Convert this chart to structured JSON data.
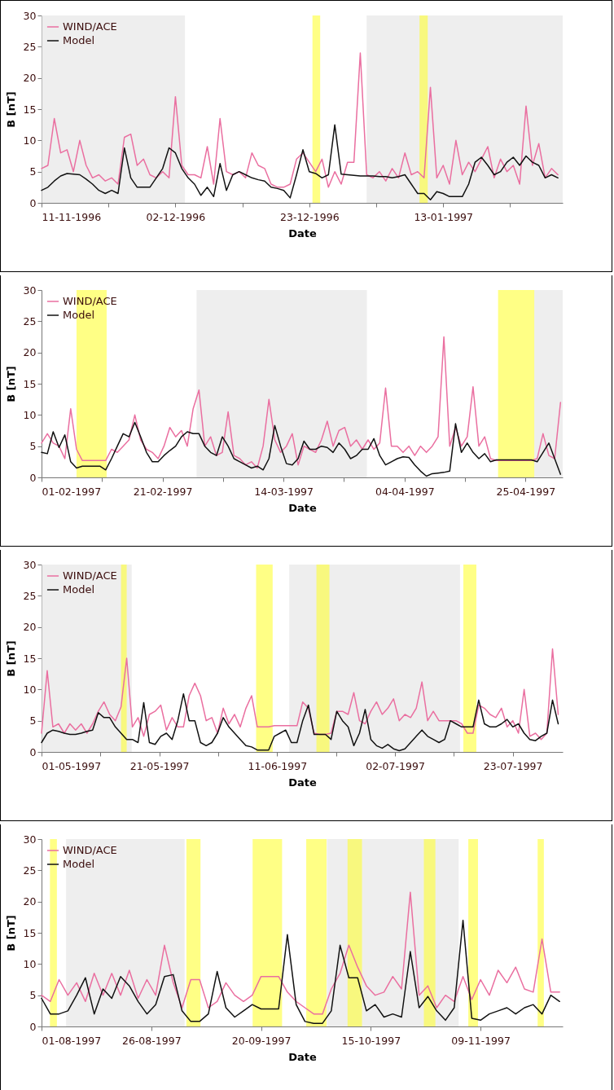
{
  "chart_data": [
    {
      "type": "line",
      "xlabel": "Date",
      "ylabel": "B [nT]",
      "legend": "top left",
      "grid": false,
      "ylim": [
        0,
        30
      ],
      "yticks": [
        0,
        5,
        10,
        15,
        20,
        25,
        30
      ],
      "xlim": [
        "1996-11-11",
        "1997-01-31T18:00"
      ],
      "xticks": [
        {
          "value": "1996-11-11",
          "label": "11-11-1996"
        },
        {
          "value": "1996-11-21T12:00",
          "label": null
        },
        {
          "value": "1996-12-02",
          "label": "02-12-1996"
        },
        {
          "value": "1996-12-12T12:00",
          "label": null
        },
        {
          "value": "1996-12-23",
          "label": "23-12-1996"
        },
        {
          "value": "1997-01-02T12:00",
          "label": null
        },
        {
          "value": "1997-01-13",
          "label": "13-01-1997"
        },
        {
          "value": "1997-01-23T12:00",
          "label": null
        }
      ],
      "bands": [
        {
          "axis": "x",
          "from": "1996-11-11",
          "to": "1996-12-03T12:00",
          "color": "#e3e3e3"
        },
        {
          "axis": "x",
          "from": "1997-01-01",
          "to": "1997-01-31T18:00",
          "color": "#e3e3e3"
        },
        {
          "axis": "x",
          "from": "1996-12-23T12:00",
          "to": "1996-12-24T17:00",
          "color": "#ffff33"
        },
        {
          "axis": "x",
          "from": "1997-01-09T07:00",
          "to": "1997-01-10T14:00",
          "color": "#ffff33"
        }
      ],
      "x": [
        "1996-11-11",
        "1996-11-12",
        "1996-11-13",
        "1996-11-14",
        "1996-11-15",
        "1996-11-16",
        "1996-11-17",
        "1996-11-18",
        "1996-11-19",
        "1996-11-20",
        "1996-11-21",
        "1996-11-22",
        "1996-11-23",
        "1996-11-24",
        "1996-11-25",
        "1996-11-26",
        "1996-11-27",
        "1996-11-28",
        "1996-11-29",
        "1996-11-30",
        "1996-12-01",
        "1996-12-02",
        "1996-12-03",
        "1996-12-04",
        "1996-12-05",
        "1996-12-06",
        "1996-12-07",
        "1996-12-08",
        "1996-12-09",
        "1996-12-10",
        "1996-12-11",
        "1996-12-12",
        "1996-12-13",
        "1996-12-14",
        "1996-12-15",
        "1996-12-16",
        "1996-12-17",
        "1996-12-18",
        "1996-12-19",
        "1996-12-20",
        "1996-12-21",
        "1996-12-22",
        "1996-12-23",
        "1996-12-24",
        "1996-12-25",
        "1996-12-26",
        "1996-12-27",
        "1996-12-28",
        "1996-12-29",
        "1996-12-30",
        "1996-12-31",
        "1997-01-01",
        "1997-01-02",
        "1997-01-03",
        "1997-01-04",
        "1997-01-05",
        "1997-01-06",
        "1997-01-07",
        "1997-01-08",
        "1997-01-09",
        "1997-01-10",
        "1997-01-11",
        "1997-01-12",
        "1997-01-13",
        "1997-01-14",
        "1997-01-15",
        "1997-01-16",
        "1997-01-17",
        "1997-01-18",
        "1997-01-19",
        "1997-01-20",
        "1997-01-21",
        "1997-01-22",
        "1997-01-23",
        "1997-01-24",
        "1997-01-25",
        "1997-01-26",
        "1997-01-27",
        "1997-01-28",
        "1997-01-29",
        "1997-01-30",
        "1997-01-31"
      ],
      "series": [
        {
          "name": "WIND/ACE",
          "color": "#ea6fa0",
          "values": [
            5.5,
            6,
            13.5,
            8,
            8.5,
            5,
            10,
            6,
            4,
            4.5,
            3.5,
            4,
            3,
            10.5,
            11,
            6,
            7,
            4.5,
            4,
            5,
            4,
            17,
            6,
            4.5,
            4.5,
            4,
            9,
            3,
            13.5,
            5,
            4.5,
            5,
            4,
            8,
            6,
            5.5,
            3,
            2.5,
            2.5,
            3,
            7,
            8,
            6.5,
            5,
            7,
            2.5,
            5,
            3,
            6.5,
            6.5,
            24,
            4.5,
            4,
            5,
            3.5,
            5.5,
            4,
            8,
            4.5,
            5,
            4,
            18.5,
            4,
            6,
            3,
            10,
            4.5,
            6.5,
            5,
            7,
            9,
            4,
            7,
            5,
            6,
            3,
            15.5,
            6,
            9.5,
            4,
            5.5,
            4.5
          ]
        },
        {
          "name": "Model",
          "color": "#111111",
          "values": [
            2,
            2.5,
            3.5,
            4.3,
            4.7,
            4.6,
            4.5,
            3.8,
            3,
            2,
            1.5,
            2,
            1.5,
            8.8,
            4,
            2.5,
            2.5,
            2.5,
            4,
            5.5,
            8.8,
            8,
            5.5,
            4,
            3,
            1.2,
            2.5,
            1,
            6.3,
            2,
            4.5,
            5,
            4.5,
            4,
            3.7,
            3.5,
            2.5,
            2.3,
            2,
            0.8,
            4.5,
            8.5,
            5,
            4.7,
            4,
            4.5,
            12.5,
            4.6,
            4.5,
            4.4,
            4.3,
            4.3,
            4.3,
            4.2,
            4.2,
            4,
            4.2,
            4.5,
            3,
            1.5,
            1.5,
            0.5,
            1.8,
            1.5,
            1,
            1,
            1,
            3,
            6.5,
            7.3,
            6,
            4.5,
            5,
            6.5,
            7.3,
            6,
            7.5,
            6.5,
            6,
            4,
            4.5,
            4
          ]
        }
      ]
    },
    {
      "type": "line",
      "xlabel": "Date",
      "ylabel": "B [nT]",
      "legend": "top left",
      "grid": false,
      "ylim": [
        0,
        30
      ],
      "yticks": [
        0,
        5,
        10,
        15,
        20,
        25,
        30
      ],
      "xlim": [
        "1997-02-01",
        "1997-05-01T09:00"
      ],
      "xticks": [
        {
          "value": "1997-02-01",
          "label": "01-02-1997"
        },
        {
          "value": "1997-02-11T09:00",
          "label": null
        },
        {
          "value": "1997-02-21T18:00",
          "label": "21-02-1997"
        },
        {
          "value": "1997-03-04T03:00",
          "label": null
        },
        {
          "value": "1997-03-14T12:00",
          "label": "14-03-1997"
        },
        {
          "value": "1997-03-24T21:00",
          "label": null
        },
        {
          "value": "1997-04-04T06:00",
          "label": "04-04-1997"
        },
        {
          "value": "1997-04-14T15:00",
          "label": null
        },
        {
          "value": "1997-04-25",
          "label": "25-04-1997"
        }
      ],
      "bands": [
        {
          "axis": "x",
          "from": "1997-02-27T14:00",
          "to": "1997-03-28T19:00",
          "color": "#e3e3e3"
        },
        {
          "axis": "x",
          "from": "1997-04-26T12:00",
          "to": "1997-05-01T09:00",
          "color": "#e3e3e3"
        },
        {
          "axis": "x",
          "from": "1997-02-07",
          "to": "1997-02-12T04:00",
          "color": "#ffff33"
        },
        {
          "axis": "x",
          "from": "1997-04-20T07:00",
          "to": "1997-04-26T12:00",
          "color": "#ffff33"
        }
      ],
      "x": [
        "1997-02-01",
        "1997-02-02",
        "1997-02-03",
        "1997-02-04",
        "1997-02-05",
        "1997-02-06",
        "1997-02-07",
        "1997-02-08",
        "1997-02-09",
        "1997-02-10",
        "1997-02-11",
        "1997-02-12",
        "1997-02-13",
        "1997-02-14",
        "1997-02-15",
        "1997-02-16",
        "1997-02-17",
        "1997-02-18",
        "1997-02-19",
        "1997-02-20",
        "1997-02-21",
        "1997-02-22",
        "1997-02-23",
        "1997-02-24",
        "1997-02-25",
        "1997-02-26",
        "1997-02-27",
        "1997-02-28",
        "1997-03-01",
        "1997-03-02",
        "1997-03-03",
        "1997-03-04",
        "1997-03-05",
        "1997-03-06",
        "1997-03-07",
        "1997-03-08",
        "1997-03-09",
        "1997-03-10",
        "1997-03-11",
        "1997-03-12",
        "1997-03-13",
        "1997-03-14",
        "1997-03-15",
        "1997-03-16",
        "1997-03-17",
        "1997-03-18",
        "1997-03-19",
        "1997-03-20",
        "1997-03-21",
        "1997-03-22",
        "1997-03-23",
        "1997-03-24",
        "1997-03-25",
        "1997-03-26",
        "1997-03-27",
        "1997-03-28",
        "1997-03-29",
        "1997-03-30",
        "1997-03-31",
        "1997-04-01",
        "1997-04-02",
        "1997-04-03",
        "1997-04-04",
        "1997-04-05",
        "1997-04-06",
        "1997-04-07",
        "1997-04-08",
        "1997-04-09",
        "1997-04-10",
        "1997-04-11",
        "1997-04-12",
        "1997-04-13",
        "1997-04-14",
        "1997-04-15",
        "1997-04-16",
        "1997-04-17",
        "1997-04-18",
        "1997-04-19",
        "1997-04-20",
        "1997-04-21",
        "1997-04-22",
        "1997-04-23",
        "1997-04-24",
        "1997-04-25",
        "1997-04-26",
        "1997-04-27",
        "1997-04-28",
        "1997-04-29",
        "1997-04-30",
        "1997-05-01"
      ],
      "series": [
        {
          "name": "WIND/ACE",
          "color": "#ea6fa0",
          "values": [
            5.5,
            7,
            5.5,
            5,
            3,
            11,
            4.5,
            2.7,
            2.7,
            2.7,
            2.7,
            2.7,
            4.5,
            4,
            5,
            6,
            10,
            6,
            4.5,
            4,
            3,
            5,
            8,
            6.5,
            7.5,
            5,
            11,
            14,
            5,
            6.5,
            3.5,
            4,
            10.5,
            3.5,
            3,
            2,
            2.5,
            1.5,
            5,
            12.5,
            6,
            4,
            5,
            7,
            2,
            5,
            4.5,
            4,
            6,
            9,
            5,
            7.5,
            8,
            5,
            6,
            4.5,
            6,
            4.5,
            5.5,
            14.3,
            5,
            5,
            4,
            5,
            3.5,
            5,
            4,
            5,
            6.5,
            22.5,
            5,
            8,
            5,
            6.5,
            14.5,
            5,
            6.5,
            3,
            2.7,
            2.7,
            2.7,
            2.7,
            2.7,
            2.7,
            2.7,
            3,
            7,
            3.5,
            3,
            12
          ]
        },
        {
          "name": "Model",
          "color": "#111111",
          "values": [
            4,
            3.8,
            7.3,
            4.8,
            6.8,
            2.5,
            1.5,
            1.8,
            1.8,
            1.8,
            1.8,
            1.2,
            3,
            5,
            7,
            6.5,
            8.8,
            6.5,
            4,
            2.5,
            2.5,
            3.5,
            4.3,
            5,
            6.5,
            7.3,
            7,
            7,
            5,
            4,
            3.5,
            6.5,
            5,
            3,
            2.5,
            2,
            1.5,
            1.8,
            1.2,
            3,
            8.3,
            5,
            2.2,
            2,
            3,
            5.8,
            4.5,
            4.5,
            5,
            4.8,
            4,
            5.5,
            4.5,
            3,
            3.5,
            4.5,
            4.5,
            6.2,
            3.5,
            2,
            2.5,
            3,
            3.3,
            3.2,
            2,
            1,
            0.2,
            0.6,
            0.7,
            0.8,
            1,
            8.6,
            4,
            5.5,
            4,
            3,
            3.8,
            2.5,
            2.8,
            2.8,
            2.8,
            2.8,
            2.8,
            2.8,
            2.8,
            2.5,
            4,
            5.5,
            3,
            0.5
          ]
        }
      ]
    },
    {
      "type": "line",
      "xlabel": "Date",
      "ylabel": "B [nT]",
      "legend": "top left",
      "grid": false,
      "ylim": [
        0,
        30
      ],
      "yticks": [
        0,
        5,
        10,
        15,
        20,
        25,
        30
      ],
      "xlim": [
        "1997-05-01",
        "1997-07-31T19:00"
      ],
      "xticks": [
        {
          "value": "1997-05-01",
          "label": "01-05-1997"
        },
        {
          "value": "1997-05-11T09:00",
          "label": null
        },
        {
          "value": "1997-05-21T18:00",
          "label": "21-05-1997"
        },
        {
          "value": "1997-06-01T03:00",
          "label": null
        },
        {
          "value": "1997-06-11T12:00",
          "label": "11-06-1997"
        },
        {
          "value": "1997-06-21T21:00",
          "label": null
        },
        {
          "value": "1997-07-02T06:00",
          "label": "02-07-1997"
        },
        {
          "value": "1997-07-12T15:00",
          "label": null
        },
        {
          "value": "1997-07-23",
          "label": "23-07-1997"
        }
      ],
      "bands": [
        {
          "axis": "x",
          "from": "1997-05-01",
          "to": "1997-05-16T21:00",
          "color": "#e3e3e3"
        },
        {
          "axis": "x",
          "from": "1997-06-13T15:00",
          "to": "1997-07-13T17:00",
          "color": "#e3e3e3"
        },
        {
          "axis": "x",
          "from": "1997-05-15",
          "to": "1997-05-16",
          "color": "#ffff33"
        },
        {
          "axis": "x",
          "from": "1997-06-07T19:00",
          "to": "1997-06-10T17:00",
          "color": "#ffff33"
        },
        {
          "axis": "x",
          "from": "1997-06-18T10:00",
          "to": "1997-06-20T17:00",
          "color": "#ffff33"
        },
        {
          "axis": "x",
          "from": "1997-07-14T07:00",
          "to": "1997-07-16T14:00",
          "color": "#ffff33"
        }
      ],
      "x": [
        "1997-05-01",
        "1997-05-02",
        "1997-05-03",
        "1997-05-04",
        "1997-05-05",
        "1997-05-06",
        "1997-05-07",
        "1997-05-08",
        "1997-05-09",
        "1997-05-10",
        "1997-05-11",
        "1997-05-12",
        "1997-05-13",
        "1997-05-14",
        "1997-05-15",
        "1997-05-16",
        "1997-05-17",
        "1997-05-18",
        "1997-05-19",
        "1997-05-20",
        "1997-05-21",
        "1997-05-22",
        "1997-05-23",
        "1997-05-24",
        "1997-05-25",
        "1997-05-26",
        "1997-05-27",
        "1997-05-28",
        "1997-05-29",
        "1997-05-30",
        "1997-05-31",
        "1997-06-01",
        "1997-06-02",
        "1997-06-03",
        "1997-06-04",
        "1997-06-05",
        "1997-06-06",
        "1997-06-07",
        "1997-06-08",
        "1997-06-09",
        "1997-06-10",
        "1997-06-11",
        "1997-06-12",
        "1997-06-13",
        "1997-06-14",
        "1997-06-15",
        "1997-06-16",
        "1997-06-17",
        "1997-06-18",
        "1997-06-19",
        "1997-06-20",
        "1997-06-21",
        "1997-06-22",
        "1997-06-23",
        "1997-06-24",
        "1997-06-25",
        "1997-06-26",
        "1997-06-27",
        "1997-06-28",
        "1997-06-29",
        "1997-06-30",
        "1997-07-01",
        "1997-07-02",
        "1997-07-03",
        "1997-07-04",
        "1997-07-05",
        "1997-07-06",
        "1997-07-07",
        "1997-07-08",
        "1997-07-09",
        "1997-07-10",
        "1997-07-11",
        "1997-07-12",
        "1997-07-13",
        "1997-07-14",
        "1997-07-15",
        "1997-07-16",
        "1997-07-17",
        "1997-07-18",
        "1997-07-19",
        "1997-07-20",
        "1997-07-21",
        "1997-07-22",
        "1997-07-23",
        "1997-07-24",
        "1997-07-25",
        "1997-07-26",
        "1997-07-27",
        "1997-07-28",
        "1997-07-29",
        "1997-07-30",
        "1997-07-31"
      ],
      "series": [
        {
          "name": "WIND/ACE",
          "color": "#ea6fa0",
          "values": [
            3,
            13,
            4,
            4.5,
            3,
            4.5,
            3.5,
            4.5,
            3,
            4.5,
            6.5,
            8,
            6,
            5,
            7.2,
            15,
            4,
            5.5,
            2.5,
            6,
            6.5,
            7.5,
            3.5,
            5.5,
            4,
            4,
            9,
            11,
            9,
            5,
            5.5,
            3,
            7,
            4.5,
            6,
            4,
            7,
            9,
            4,
            4,
            4,
            4.2,
            4.2,
            4.2,
            4.2,
            4.2,
            8,
            7,
            3,
            2.8,
            2.8,
            3,
            6.5,
            6.5,
            6,
            9.5,
            5,
            4.5,
            6.5,
            8,
            6,
            7,
            8.5,
            5,
            6,
            5.5,
            7,
            11.2,
            5,
            6.5,
            5,
            5,
            5,
            5,
            4.5,
            3,
            3,
            7.5,
            7,
            6,
            5.5,
            7,
            4,
            5,
            3,
            10,
            2.5,
            3,
            2,
            3,
            16.5,
            6
          ]
        },
        {
          "name": "Model",
          "color": "#111111",
          "values": [
            1.5,
            3,
            3.5,
            3.3,
            3,
            2.8,
            2.8,
            3,
            3.3,
            3.5,
            6.3,
            5.5,
            5.5,
            4,
            3,
            2,
            2,
            1.5,
            7.9,
            1.5,
            1.2,
            2.5,
            3,
            2,
            5,
            9.3,
            5,
            5,
            1.5,
            1,
            1.5,
            3,
            5.5,
            4,
            3,
            2,
            1,
            0.8,
            0.3,
            0.3,
            0.3,
            2.5,
            3,
            3.5,
            1.5,
            1.5,
            5,
            7.5,
            2.8,
            2.8,
            2.8,
            2,
            6.5,
            5,
            4,
            1,
            3,
            6.8,
            2,
            1,
            0.6,
            1.2,
            0.5,
            0.2,
            0.5,
            1.5,
            2.5,
            3.5,
            2.5,
            2,
            1.5,
            2,
            5,
            4.5,
            4,
            4,
            4,
            8.3,
            4.5,
            4,
            4,
            4.5,
            5.2,
            4,
            4.5,
            3,
            2,
            1.8,
            2.5,
            3,
            8.3,
            4.5
          ]
        }
      ]
    },
    {
      "type": "line",
      "xlabel": "Date",
      "ylabel": "B [nT]",
      "legend": "top left",
      "grid": false,
      "ylim": [
        0,
        30
      ],
      "yticks": [
        0,
        5,
        10,
        15,
        20,
        25,
        30
      ],
      "xlim": [
        "1997-08-01",
        "1997-11-27T17:00"
      ],
      "xticks": [
        {
          "value": "1997-08-01",
          "label": "01-08-1997"
        },
        {
          "value": "1997-08-26",
          "label": "26-08-1997"
        },
        {
          "value": "1997-09-20",
          "label": "20-09-1997"
        },
        {
          "value": "1997-10-15",
          "label": "15-10-1997"
        },
        {
          "value": "1997-11-09",
          "label": "09-11-1997"
        }
      ],
      "bands": [
        {
          "axis": "x",
          "from": "1997-08-06T14:00",
          "to": "1997-09-02T14:00",
          "color": "#e3e3e3"
        },
        {
          "axis": "x",
          "from": "1997-10-05",
          "to": "1997-11-04",
          "color": "#e3e3e3"
        },
        {
          "axis": "x",
          "from": "1997-08-02T22:00",
          "to": "1997-08-04T12:00",
          "color": "#ffff33"
        },
        {
          "axis": "x",
          "from": "1997-09-03",
          "to": "1997-09-06T05:00",
          "color": "#ffff33"
        },
        {
          "axis": "x",
          "from": "1997-09-18T02:00",
          "to": "1997-09-24T19:00",
          "color": "#ffff33"
        },
        {
          "axis": "x",
          "from": "1997-09-30T07:00",
          "to": "1997-10-04T22:00",
          "color": "#ffff33"
        },
        {
          "axis": "x",
          "from": "1997-10-09T17:00",
          "to": "1997-10-13",
          "color": "#ffff33"
        },
        {
          "axis": "x",
          "from": "1997-10-27T02:00",
          "to": "1997-10-29T17:00",
          "color": "#ffff33"
        },
        {
          "axis": "x",
          "from": "1997-11-06T05:00",
          "to": "1997-11-08T10:00",
          "color": "#ffff33"
        },
        {
          "axis": "x",
          "from": "1997-11-22",
          "to": "1997-11-23T10:00",
          "color": "#ffff33"
        }
      ],
      "x": [
        "1997-08-01",
        "1997-08-03",
        "1997-08-05",
        "1997-08-07",
        "1997-08-09",
        "1997-08-11",
        "1997-08-13",
        "1997-08-15",
        "1997-08-17",
        "1997-08-19",
        "1997-08-21",
        "1997-08-23",
        "1997-08-25",
        "1997-08-27",
        "1997-08-29",
        "1997-08-31",
        "1997-09-02",
        "1997-09-04",
        "1997-09-06",
        "1997-09-08",
        "1997-09-10",
        "1997-09-12",
        "1997-09-14",
        "1997-09-16",
        "1997-09-18",
        "1997-09-20",
        "1997-09-22",
        "1997-09-24",
        "1997-09-26",
        "1997-09-28",
        "1997-09-30",
        "1997-10-02",
        "1997-10-04",
        "1997-10-06",
        "1997-10-08",
        "1997-10-10",
        "1997-10-12",
        "1997-10-14",
        "1997-10-16",
        "1997-10-18",
        "1997-10-20",
        "1997-10-22",
        "1997-10-24",
        "1997-10-26",
        "1997-10-28",
        "1997-10-30",
        "1997-11-01",
        "1997-11-03",
        "1997-11-05",
        "1997-11-07",
        "1997-11-09",
        "1997-11-11",
        "1997-11-13",
        "1997-11-15",
        "1997-11-17",
        "1997-11-19",
        "1997-11-21",
        "1997-11-23",
        "1997-11-25",
        "1997-11-27"
      ],
      "series": [
        {
          "name": "WIND/ACE",
          "color": "#ea6fa0",
          "values": [
            5,
            4,
            7.5,
            5,
            7,
            4,
            8.5,
            5,
            8.5,
            5,
            9,
            4.5,
            7.5,
            5,
            13,
            7,
            3,
            7.5,
            7.5,
            3,
            4,
            7,
            5,
            4,
            5,
            8,
            8,
            8,
            5.5,
            4,
            3,
            2,
            2,
            6,
            8.5,
            13,
            9.5,
            6.5,
            5,
            5.5,
            8,
            6,
            21.5,
            5,
            6.5,
            3,
            5,
            4,
            8,
            4.3,
            7.5,
            5,
            9,
            7,
            9.5,
            6,
            5.5,
            14,
            5.5,
            5.5
          ]
        },
        {
          "name": "Model",
          "color": "#111111",
          "values": [
            4.5,
            2,
            2,
            2.5,
            5,
            7.8,
            2,
            6,
            4.5,
            8,
            6.5,
            4,
            2,
            3.5,
            8,
            8.3,
            2.5,
            0.8,
            0.8,
            2,
            8.8,
            3,
            1.5,
            2.5,
            3.5,
            2.8,
            2.8,
            2.8,
            14.7,
            3.5,
            0.8,
            0.5,
            0.5,
            2.5,
            13,
            7.8,
            7.8,
            2.5,
            3.5,
            1.5,
            2,
            1.5,
            12,
            3,
            4.8,
            2.5,
            1,
            3,
            17,
            1.3,
            1,
            2,
            2.5,
            3,
            2,
            3,
            3.5,
            2,
            5,
            4
          ]
        }
      ]
    }
  ]
}
